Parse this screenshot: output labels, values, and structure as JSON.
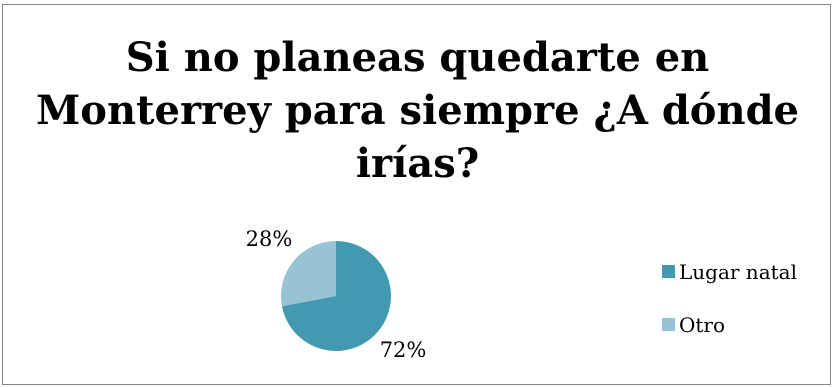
{
  "chart_data": {
    "type": "pie",
    "title": "Si no planeas quedarte en Monterrey para siempre ¿A dónde irías?",
    "categories": [
      "Lugar natal",
      "Otro"
    ],
    "values": [
      72,
      28
    ],
    "labels": [
      "72%",
      "28%"
    ],
    "colors": [
      "#4299B0",
      "#97C3D2"
    ],
    "legend_position": "right"
  }
}
